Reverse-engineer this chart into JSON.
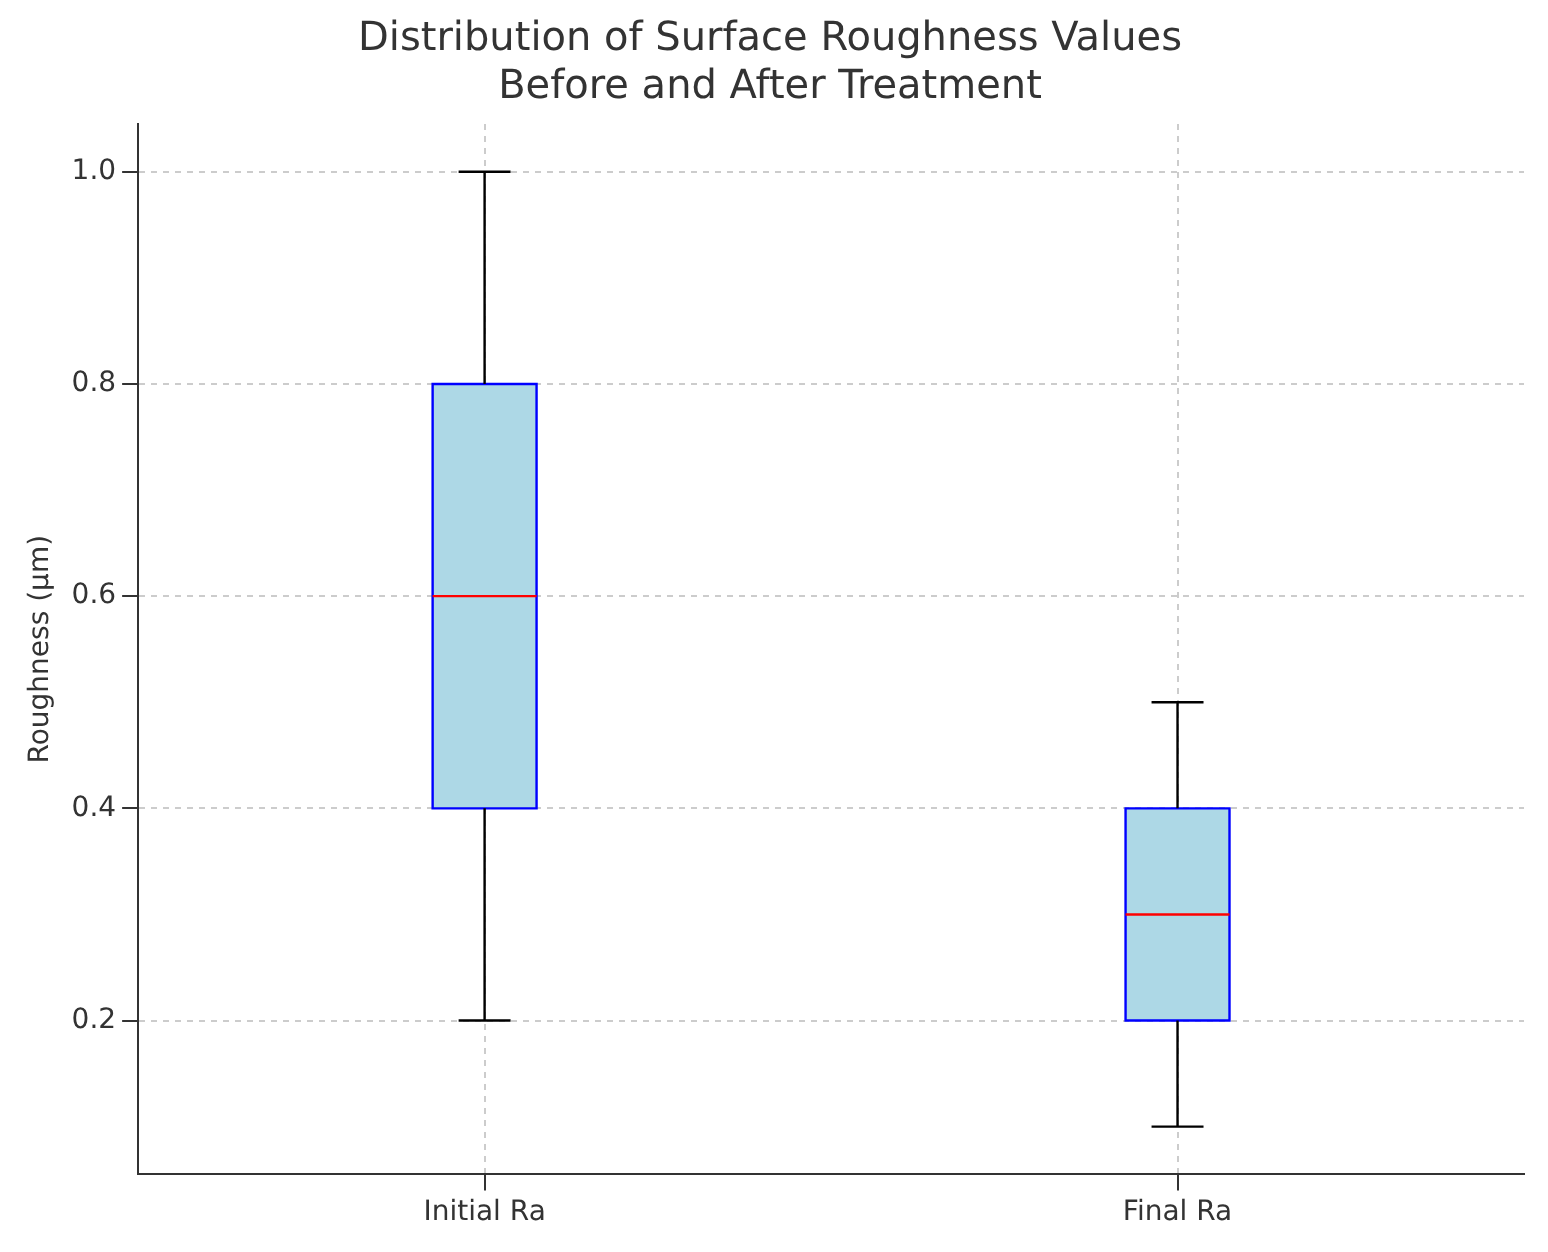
{
  "chart_data": {
    "type": "box",
    "title": "Distribution of Surface Roughness Values\nBefore and After Treatment",
    "ylabel": "Roughness (µm)",
    "categories": [
      "Initial Ra",
      "Final Ra"
    ],
    "series": [
      {
        "color": "#add8e6",
        "boxes": [
          {
            "low": 0.2,
            "q1": 0.4,
            "median": 0.6,
            "q3": 0.8,
            "high": 1.0
          },
          {
            "low": 0.1,
            "q1": 0.2,
            "median": 0.3,
            "q3": 0.4,
            "high": 0.5
          }
        ]
      }
    ],
    "ylim": [
      0.055,
      1.045
    ],
    "yticks": [
      0.2,
      0.4,
      0.6,
      0.8,
      {
        "value": 1.0,
        "label": "1.0"
      }
    ],
    "grid": true
  }
}
